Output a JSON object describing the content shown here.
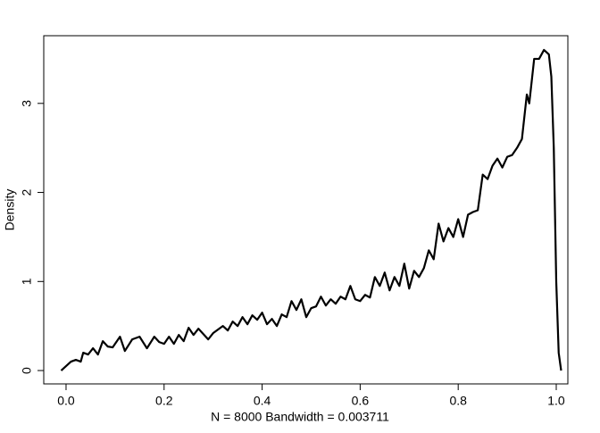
{
  "chart_data": {
    "type": "line",
    "xlabel": "N = 8000   Bandwidth = 0.003711",
    "ylabel": "Density",
    "x": [
      -0.01,
      0.0,
      0.01,
      0.02,
      0.03,
      0.035,
      0.045,
      0.055,
      0.065,
      0.075,
      0.085,
      0.095,
      0.11,
      0.12,
      0.135,
      0.15,
      0.165,
      0.18,
      0.19,
      0.2,
      0.21,
      0.22,
      0.23,
      0.24,
      0.25,
      0.26,
      0.27,
      0.29,
      0.3,
      0.32,
      0.33,
      0.34,
      0.35,
      0.36,
      0.37,
      0.38,
      0.39,
      0.4,
      0.41,
      0.42,
      0.43,
      0.44,
      0.45,
      0.46,
      0.47,
      0.48,
      0.49,
      0.5,
      0.51,
      0.52,
      0.53,
      0.54,
      0.55,
      0.56,
      0.57,
      0.58,
      0.59,
      0.6,
      0.61,
      0.62,
      0.63,
      0.64,
      0.65,
      0.66,
      0.67,
      0.68,
      0.69,
      0.7,
      0.71,
      0.72,
      0.73,
      0.74,
      0.75,
      0.76,
      0.77,
      0.78,
      0.79,
      0.8,
      0.81,
      0.82,
      0.83,
      0.84,
      0.85,
      0.86,
      0.87,
      0.88,
      0.89,
      0.9,
      0.91,
      0.92,
      0.93,
      0.94,
      0.945,
      0.955,
      0.965,
      0.975,
      0.985,
      0.99,
      0.995,
      1.0,
      1.005,
      1.01
    ],
    "series": [
      {
        "color": "#000000",
        "values": [
          0,
          0.05,
          0.1,
          0.12,
          0.1,
          0.2,
          0.18,
          0.25,
          0.18,
          0.33,
          0.27,
          0.26,
          0.38,
          0.22,
          0.35,
          0.38,
          0.25,
          0.38,
          0.32,
          0.3,
          0.38,
          0.3,
          0.4,
          0.33,
          0.48,
          0.4,
          0.47,
          0.35,
          0.42,
          0.5,
          0.45,
          0.55,
          0.5,
          0.6,
          0.52,
          0.62,
          0.57,
          0.65,
          0.52,
          0.58,
          0.5,
          0.63,
          0.6,
          0.78,
          0.68,
          0.8,
          0.6,
          0.7,
          0.72,
          0.83,
          0.73,
          0.8,
          0.75,
          0.83,
          0.8,
          0.95,
          0.8,
          0.78,
          0.85,
          0.82,
          1.05,
          0.95,
          1.1,
          0.9,
          1.05,
          0.95,
          1.2,
          0.92,
          1.12,
          1.05,
          1.15,
          1.35,
          1.25,
          1.65,
          1.45,
          1.6,
          1.5,
          1.7,
          1.5,
          1.75,
          1.78,
          1.8,
          2.2,
          2.15,
          2.3,
          2.38,
          2.28,
          2.4,
          2.42,
          2.5,
          2.6,
          3.1,
          3.0,
          3.5,
          3.5,
          3.6,
          3.55,
          3.3,
          2.5,
          1.0,
          0.2,
          0.0
        ]
      }
    ],
    "xlim": [
      -0.0455,
      1.0237
    ],
    "ylim": [
      -0.15,
      3.76
    ],
    "xticks": [
      {
        "value": 0,
        "label": "0.0"
      },
      0.2,
      0.4,
      0.6,
      0.8,
      {
        "value": 1,
        "label": "1.0"
      }
    ],
    "yticks": [
      0,
      1,
      2,
      3
    ]
  }
}
